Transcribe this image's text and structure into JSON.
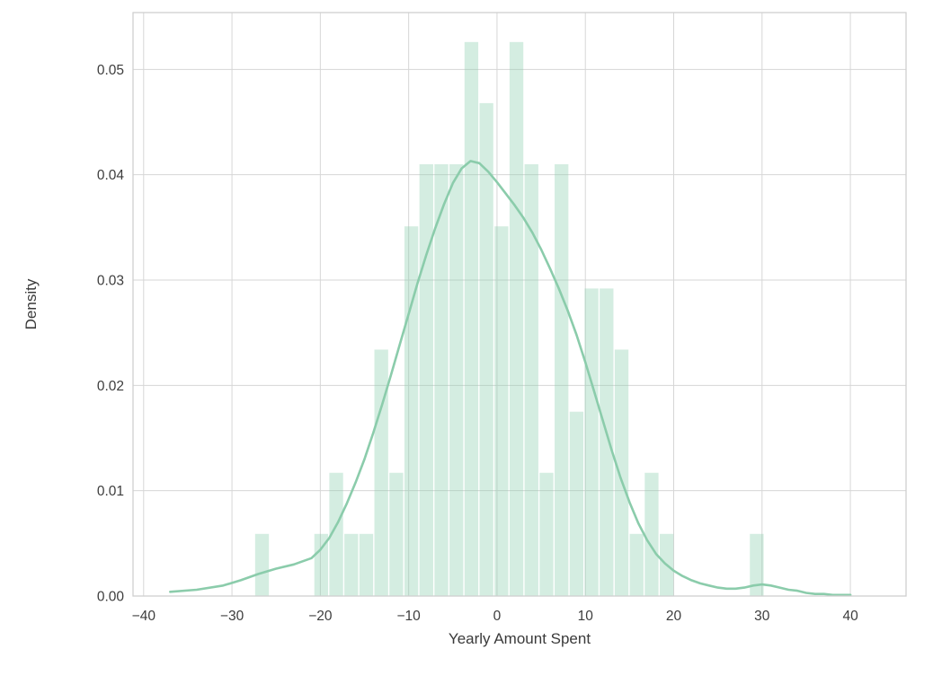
{
  "figure": {
    "xlabel": "Yearly Amount Spent",
    "ylabel": "Density"
  },
  "chart_data": {
    "type": "bar",
    "subtype": "histogram_with_kde",
    "title": "",
    "xlabel": "Yearly Amount Spent",
    "ylabel": "Density",
    "xlim": [
      -41.2,
      46.3
    ],
    "ylim": [
      0,
      0.0554
    ],
    "x_ticks": [
      -40,
      -30,
      -20,
      -10,
      0,
      10,
      20,
      30,
      40
    ],
    "x_tick_labels": [
      "−40",
      "−30",
      "−20",
      "−10",
      "0",
      "10",
      "20",
      "30",
      "40"
    ],
    "y_ticks": [
      0,
      0.01,
      0.02,
      0.03,
      0.04,
      0.05
    ],
    "y_tick_labels": [
      "0.00",
      "0.01",
      "0.02",
      "0.03",
      "0.04",
      "0.05"
    ],
    "grid": true,
    "bin_width": 1.7,
    "bars": [
      {
        "x": -26.6,
        "h": 0.0059
      },
      {
        "x": -19.9,
        "h": 0.0059
      },
      {
        "x": -18.2,
        "h": 0.0117
      },
      {
        "x": -16.5,
        "h": 0.0059
      },
      {
        "x": -14.8,
        "h": 0.0059
      },
      {
        "x": -13.1,
        "h": 0.0234
      },
      {
        "x": -11.4,
        "h": 0.0117
      },
      {
        "x": -9.7,
        "h": 0.0351
      },
      {
        "x": -8.0,
        "h": 0.041
      },
      {
        "x": -6.3,
        "h": 0.041
      },
      {
        "x": -4.6,
        "h": 0.041
      },
      {
        "x": -2.9,
        "h": 0.0526
      },
      {
        "x": -1.2,
        "h": 0.0468
      },
      {
        "x": 0.5,
        "h": 0.0351
      },
      {
        "x": 2.2,
        "h": 0.0526
      },
      {
        "x": 3.9,
        "h": 0.041
      },
      {
        "x": 5.6,
        "h": 0.0117
      },
      {
        "x": 7.3,
        "h": 0.041
      },
      {
        "x": 9.0,
        "h": 0.0175
      },
      {
        "x": 10.7,
        "h": 0.0292
      },
      {
        "x": 12.4,
        "h": 0.0292
      },
      {
        "x": 14.1,
        "h": 0.0234
      },
      {
        "x": 15.8,
        "h": 0.0059
      },
      {
        "x": 17.5,
        "h": 0.0117
      },
      {
        "x": 19.2,
        "h": 0.0059
      },
      {
        "x": 29.4,
        "h": 0.0059
      }
    ],
    "kde": [
      [
        -37,
        0.0004
      ],
      [
        -34,
        0.0006
      ],
      [
        -31,
        0.001
      ],
      [
        -29,
        0.0015
      ],
      [
        -27,
        0.0021
      ],
      [
        -25,
        0.0026
      ],
      [
        -23,
        0.003
      ],
      [
        -21,
        0.0036
      ],
      [
        -20,
        0.0044
      ],
      [
        -19,
        0.0055
      ],
      [
        -18,
        0.007
      ],
      [
        -17,
        0.0088
      ],
      [
        -16,
        0.0108
      ],
      [
        -15,
        0.013
      ],
      [
        -14,
        0.0155
      ],
      [
        -13,
        0.0182
      ],
      [
        -12,
        0.021
      ],
      [
        -11,
        0.0239
      ],
      [
        -10,
        0.0268
      ],
      [
        -9,
        0.0297
      ],
      [
        -8,
        0.0324
      ],
      [
        -7,
        0.0349
      ],
      [
        -6,
        0.0372
      ],
      [
        -5,
        0.0392
      ],
      [
        -4,
        0.0406
      ],
      [
        -3,
        0.0413
      ],
      [
        -2,
        0.0411
      ],
      [
        -1,
        0.0403
      ],
      [
        0,
        0.0393
      ],
      [
        1,
        0.0382
      ],
      [
        2,
        0.0371
      ],
      [
        3,
        0.0359
      ],
      [
        4,
        0.0345
      ],
      [
        5,
        0.0329
      ],
      [
        6,
        0.0311
      ],
      [
        7,
        0.0292
      ],
      [
        8,
        0.0271
      ],
      [
        9,
        0.0248
      ],
      [
        10,
        0.0222
      ],
      [
        11,
        0.0194
      ],
      [
        12,
        0.0166
      ],
      [
        13,
        0.0138
      ],
      [
        14,
        0.0112
      ],
      [
        15,
        0.0089
      ],
      [
        16,
        0.0069
      ],
      [
        17,
        0.0053
      ],
      [
        18,
        0.004
      ],
      [
        19,
        0.0031
      ],
      [
        20,
        0.0024
      ],
      [
        21,
        0.0019
      ],
      [
        22,
        0.0015
      ],
      [
        23,
        0.0012
      ],
      [
        24,
        0.001
      ],
      [
        25,
        0.0008
      ],
      [
        26,
        0.0007
      ],
      [
        27,
        0.0007
      ],
      [
        28,
        0.0008
      ],
      [
        29,
        0.001
      ],
      [
        30,
        0.0011
      ],
      [
        31,
        0.001
      ],
      [
        32,
        0.0008
      ],
      [
        33,
        0.0006
      ],
      [
        34,
        0.0005
      ],
      [
        35,
        0.0003
      ],
      [
        36,
        0.0002
      ],
      [
        37,
        0.0002
      ],
      [
        38,
        0.0001
      ],
      [
        39,
        0.0001
      ],
      [
        40,
        0.0001
      ]
    ]
  },
  "style": {
    "background": "#ffffff",
    "bar_fill": "#8fcfb0",
    "bar_opacity": 0.38,
    "kde_color": "#8bccab",
    "kde_width": 2.6,
    "grid_color": "#d6d6d6",
    "spine_color": "#cfcfcf",
    "text_color": "#3d3d3d"
  }
}
